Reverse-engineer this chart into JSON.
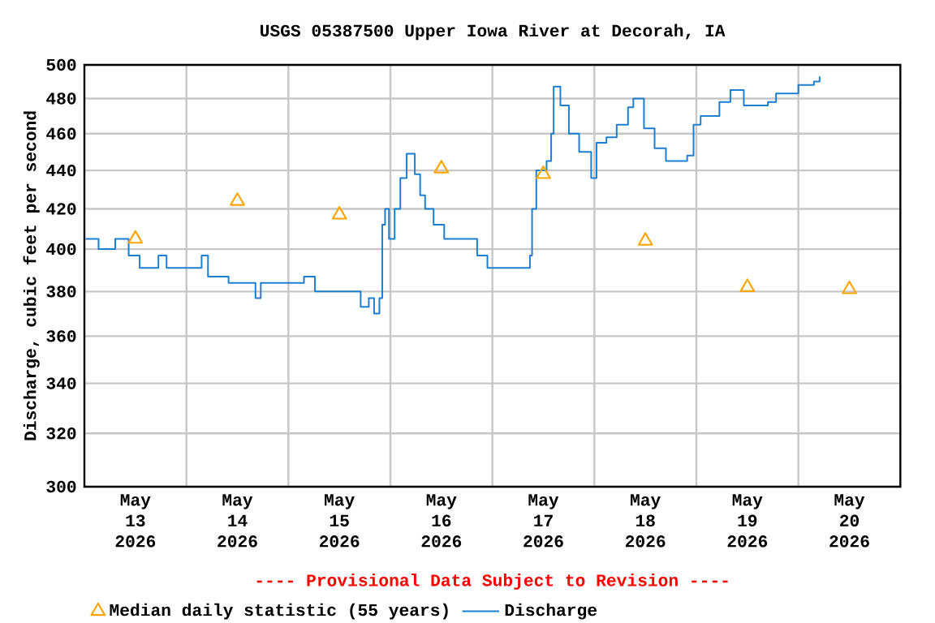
{
  "chart_data": {
    "type": "step",
    "title": "USGS 05387500 Upper Iowa River at Decorah, IA",
    "ylabel": "Discharge, cubic feet per second",
    "annotations": [
      "---- Provisional Data Subject to Revision ----"
    ],
    "xlim": [
      "2026-05-13T00:00",
      "2026-05-21T00:00"
    ],
    "xticks": [
      {
        "value": "2026-05-14T00:00",
        "label": null
      },
      {
        "value": "2026-05-15T00:00",
        "label": null
      },
      {
        "value": "2026-05-16T00:00",
        "label": null
      },
      {
        "value": "2026-05-17T00:00",
        "label": null
      },
      {
        "value": "2026-05-18T00:00",
        "label": null
      },
      {
        "value": "2026-05-19T00:00",
        "label": null
      },
      {
        "value": "2026-05-20T00:00",
        "label": null
      },
      {
        "value": "2026-05-13T12:00",
        "label": "May 13 2026"
      },
      {
        "value": "2026-05-14T12:00",
        "label": "May 14 2026"
      },
      {
        "value": "2026-05-15T12:00",
        "label": "May 15 2026"
      },
      {
        "value": "2026-05-16T12:00",
        "label": "May 16 2026"
      },
      {
        "value": "2026-05-17T12:00",
        "label": "May 17 2026"
      },
      {
        "value": "2026-05-18T12:00",
        "label": "May 18 2026"
      },
      {
        "value": "2026-05-19T12:00",
        "label": "May 19 2026"
      },
      {
        "value": "2026-05-20T12:00",
        "label": "May 20 2026"
      }
    ],
    "ylim": [
      300,
      500
    ],
    "yticks": [
      300,
      320,
      340,
      360,
      380,
      400,
      420,
      440,
      460,
      480,
      500
    ],
    "log": "y",
    "grid": true,
    "legend": "bottom",
    "series": [
      {
        "name": "Median daily statistic (55 years)",
        "type": "scatter",
        "marker": "triangle",
        "color": "#ffa500",
        "x": [
          "2026-05-13T12:00",
          "2026-05-14T12:00",
          "2026-05-15T12:00",
          "2026-05-16T12:00",
          "2026-05-17T12:00",
          "2026-05-18T12:00",
          "2026-05-19T12:00",
          "2026-05-20T12:00"
        ],
        "values": [
          405,
          424,
          417,
          441,
          438,
          404,
          382,
          381
        ]
      },
      {
        "name": "Discharge",
        "color": "#1f7fcf",
        "x": [
          "2026-05-13T00:15",
          "2026-05-13T03:20",
          "2026-05-13T07:15",
          "2026-05-13T10:25",
          "2026-05-13T13:00",
          "2026-05-13T17:25",
          "2026-05-13T19:20",
          "2026-05-14T03:35",
          "2026-05-14T05:05",
          "2026-05-14T09:55",
          "2026-05-14T16:15",
          "2026-05-14T17:30",
          "2026-05-15T03:40",
          "2026-05-15T06:15",
          "2026-05-15T12:00",
          "2026-05-15T17:00",
          "2026-05-15T18:55",
          "2026-05-15T20:10",
          "2026-05-15T21:25",
          "2026-05-15T22:05",
          "2026-05-15T22:45",
          "2026-05-15T23:40",
          "2026-05-16T01:00",
          "2026-05-16T02:20",
          "2026-05-16T03:50",
          "2026-05-16T05:45",
          "2026-05-16T07:00",
          "2026-05-16T08:10",
          "2026-05-16T10:10",
          "2026-05-16T12:40",
          "2026-05-16T20:25",
          "2026-05-16T22:50",
          "2026-05-17T07:45",
          "2026-05-17T08:50",
          "2026-05-17T09:20",
          "2026-05-17T10:20",
          "2026-05-17T12:45",
          "2026-05-17T13:50",
          "2026-05-17T14:25",
          "2026-05-17T16:00",
          "2026-05-17T18:00",
          "2026-05-17T20:25",
          "2026-05-17T23:15",
          "2026-05-18T00:30",
          "2026-05-18T02:50",
          "2026-05-18T05:15",
          "2026-05-18T07:55",
          "2026-05-18T09:10",
          "2026-05-18T11:40",
          "2026-05-18T14:10",
          "2026-05-18T16:50",
          "2026-05-18T21:50",
          "2026-05-18T23:20",
          "2026-05-19T01:00",
          "2026-05-19T05:25",
          "2026-05-19T08:00",
          "2026-05-19T11:10",
          "2026-05-19T16:50",
          "2026-05-19T18:45",
          "2026-05-20T00:00",
          "2026-05-20T03:40",
          "2026-05-20T05:00"
        ],
        "values": [
          405,
          400,
          405,
          397,
          391,
          397,
          391,
          397,
          387,
          384,
          377,
          384,
          387,
          380,
          380,
          373,
          377,
          370,
          377,
          412,
          420,
          405,
          420,
          436,
          449,
          438,
          427,
          420,
          412,
          405,
          397,
          391,
          391,
          397,
          420,
          440,
          445,
          460,
          487,
          476,
          460,
          450,
          436,
          455,
          458,
          465,
          475,
          480,
          463,
          452,
          445,
          448,
          465,
          470,
          478,
          485,
          476,
          478,
          483,
          488,
          490,
          493
        ]
      }
    ]
  }
}
